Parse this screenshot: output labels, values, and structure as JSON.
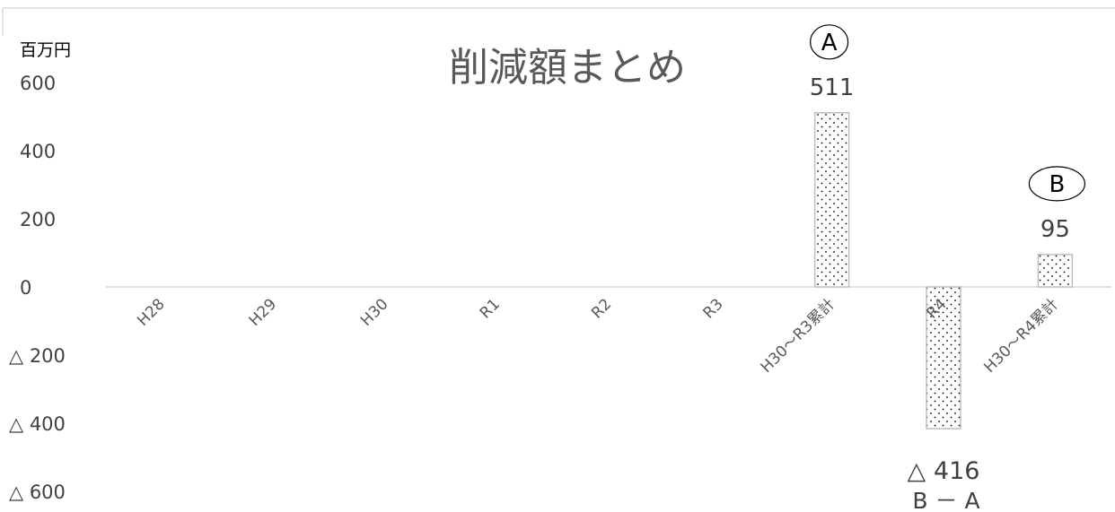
{
  "chart_data": {
    "type": "bar",
    "title": "削減額まとめ",
    "unit_label": "百万円",
    "categories": [
      "H28",
      "H29",
      "H30",
      "R1",
      "R2",
      "R3",
      "H30～R3累計",
      "R4",
      "H30～R4累計"
    ],
    "values": [
      null,
      null,
      null,
      null,
      null,
      null,
      511,
      -416,
      95
    ],
    "data_labels": [
      "",
      "",
      "",
      "",
      "",
      "",
      "511",
      "△ 416",
      "95"
    ],
    "bar_markers": [
      "",
      "",
      "",
      "",
      "",
      "",
      "A",
      "",
      "B"
    ],
    "bar_notes": [
      "",
      "",
      "",
      "",
      "",
      "",
      "",
      "B － A",
      ""
    ],
    "y_ticks": [
      {
        "value": 600,
        "label": "600"
      },
      {
        "value": 400,
        "label": "400"
      },
      {
        "value": 200,
        "label": "200"
      },
      {
        "value": 0,
        "label": "0"
      },
      {
        "value": -200,
        "label": "△ 200"
      },
      {
        "value": -400,
        "label": "△ 400"
      },
      {
        "value": -600,
        "label": "△ 600"
      }
    ],
    "ylim": [
      -600,
      600
    ],
    "grid": false,
    "bar_fill": "dotted pattern",
    "colors": {
      "bar_border": "#bfbfbf",
      "dot": "#000000",
      "text": "#404040",
      "axis": "#d9d9d9"
    }
  }
}
